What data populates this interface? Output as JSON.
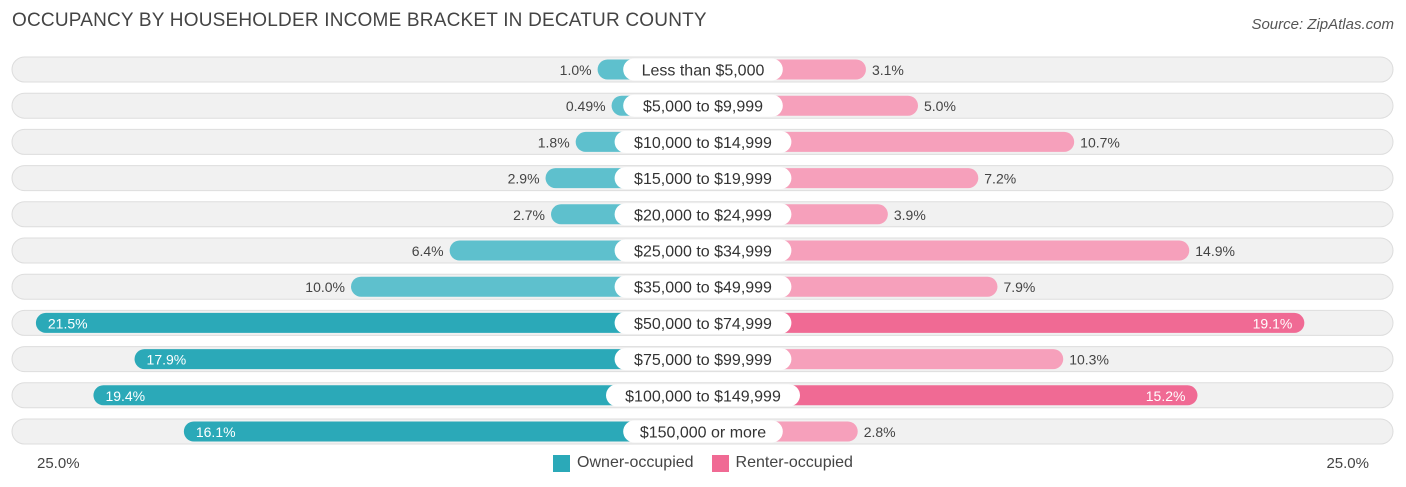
{
  "title": "OCCUPANCY BY HOUSEHOLDER INCOME BRACKET IN DECATUR COUNTY",
  "source": "Source: ZipAtlas.com",
  "colors": {
    "owner": "#5ec0cd",
    "owner_strong": "#2ba9b8",
    "renter": "#f6a0bb",
    "renter_strong": "#f06a94",
    "row_bg": "#f1f1f1",
    "row_border": "#dddddd"
  },
  "legend": {
    "owner_label": "Owner-occupied",
    "renter_label": "Renter-occupied"
  },
  "axis": {
    "left_label": "25.0%",
    "right_label": "25.0%"
  },
  "chart_data": {
    "type": "bar",
    "orientation": "horizontal-diverging",
    "title": "OCCUPANCY BY HOUSEHOLDER INCOME BRACKET IN DECATUR COUNTY",
    "categories": [
      "Less than $5,000",
      "$5,000 to $9,999",
      "$10,000 to $14,999",
      "$15,000 to $19,999",
      "$20,000 to $24,999",
      "$25,000 to $34,999",
      "$35,000 to $49,999",
      "$50,000 to $74,999",
      "$75,000 to $99,999",
      "$100,000 to $149,999",
      "$150,000 or more"
    ],
    "series": [
      {
        "name": "Owner-occupied",
        "values": [
          1.0,
          0.49,
          1.8,
          2.9,
          2.7,
          6.4,
          10.0,
          21.5,
          17.9,
          19.4,
          16.1
        ],
        "labels": [
          "1.0%",
          "0.49%",
          "1.8%",
          "2.9%",
          "2.7%",
          "6.4%",
          "10.0%",
          "21.5%",
          "17.9%",
          "19.4%",
          "16.1%"
        ]
      },
      {
        "name": "Renter-occupied",
        "values": [
          3.1,
          5.0,
          10.7,
          7.2,
          3.9,
          14.9,
          7.9,
          19.1,
          10.3,
          15.2,
          2.8
        ],
        "labels": [
          "3.1%",
          "5.0%",
          "10.7%",
          "7.2%",
          "3.9%",
          "14.9%",
          "7.9%",
          "19.1%",
          "10.3%",
          "15.2%",
          "2.8%"
        ]
      }
    ],
    "xlim": [
      -25,
      25
    ],
    "legend_position": "bottom-center"
  }
}
